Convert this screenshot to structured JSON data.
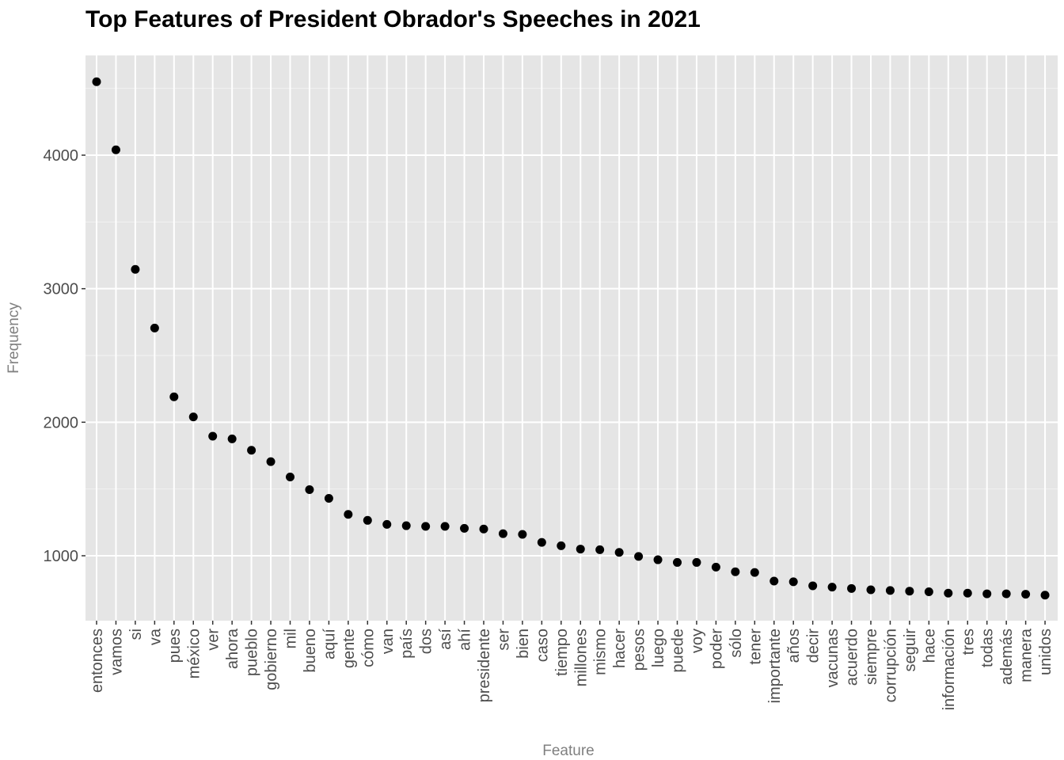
{
  "chart_data": {
    "type": "scatter",
    "title": "Top Features of President Obrador's Speeches in 2021",
    "xlabel": "Feature",
    "ylabel": "Frequency",
    "ylim": [
      515,
      4750
    ],
    "yticks": [
      1000,
      2000,
      3000,
      4000
    ],
    "grid": true,
    "point_color": "#000000",
    "panel_color": "#e5e5e5",
    "categories": [
      "entonces",
      "vamos",
      "si",
      "va",
      "pues",
      "méxico",
      "ver",
      "ahora",
      "pueblo",
      "gobierno",
      "mil",
      "bueno",
      "aquí",
      "gente",
      "cómo",
      "van",
      "país",
      "dos",
      "así",
      "ahí",
      "presidente",
      "ser",
      "bien",
      "caso",
      "tiempo",
      "millones",
      "mismo",
      "hacer",
      "pesos",
      "luego",
      "puede",
      "voy",
      "poder",
      "sólo",
      "tener",
      "importante",
      "años",
      "decir",
      "vacunas",
      "acuerdo",
      "siempre",
      "corrupción",
      "seguir",
      "hace",
      "información",
      "tres",
      "todas",
      "además",
      "manera",
      "unidos"
    ],
    "values": [
      4550,
      4040,
      3145,
      2705,
      2190,
      2040,
      1895,
      1875,
      1790,
      1705,
      1590,
      1495,
      1430,
      1310,
      1265,
      1235,
      1225,
      1220,
      1220,
      1205,
      1200,
      1165,
      1160,
      1100,
      1075,
      1050,
      1045,
      1025,
      995,
      970,
      950,
      950,
      915,
      880,
      875,
      810,
      805,
      775,
      765,
      755,
      745,
      740,
      735,
      730,
      720,
      720,
      715,
      715,
      712,
      705
    ]
  }
}
